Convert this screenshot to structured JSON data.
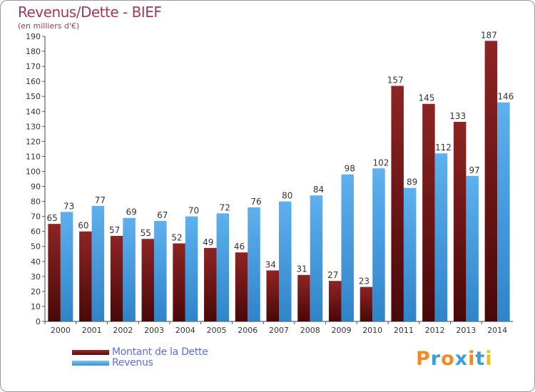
{
  "title": "Revenus/Dette - BIEF",
  "subtitle": "(en milliers d'€)",
  "legend": {
    "dette": "Montant de la Dette",
    "revenus": "Revenus"
  },
  "logo": {
    "text": "Proxiti",
    "colors": [
      "#f08a24",
      "#3aa0d8",
      "#f08a24",
      "#3aa0d8",
      "#f08a24",
      "#3aa0d8",
      "#e8c020"
    ]
  },
  "colors": {
    "dette": "#6e1a1a",
    "revenus": "#4aa3e6",
    "axis_text": "#333333",
    "title": "#a3385b",
    "legend_text": "#5a6fe0"
  },
  "chart_data": {
    "type": "bar",
    "categories": [
      "2000",
      "2001",
      "2002",
      "2003",
      "2004",
      "2005",
      "2006",
      "2007",
      "2008",
      "2009",
      "2010",
      "2011",
      "2012",
      "2013",
      "2014"
    ],
    "series": [
      {
        "name": "Montant de la Dette",
        "values": [
          65,
          60,
          57,
          55,
          52,
          49,
          46,
          34,
          31,
          27,
          23,
          157,
          145,
          133,
          187
        ]
      },
      {
        "name": "Revenus",
        "values": [
          73,
          77,
          69,
          67,
          70,
          72,
          76,
          80,
          84,
          98,
          102,
          89,
          112,
          97,
          146
        ]
      }
    ],
    "title": "Revenus/Dette - BIEF",
    "subtitle": "(en milliers d'€)",
    "ylim": [
      0,
      190
    ],
    "ytick_step": 10,
    "grid": false,
    "data_labels": true,
    "legend_position": "bottom-left"
  }
}
